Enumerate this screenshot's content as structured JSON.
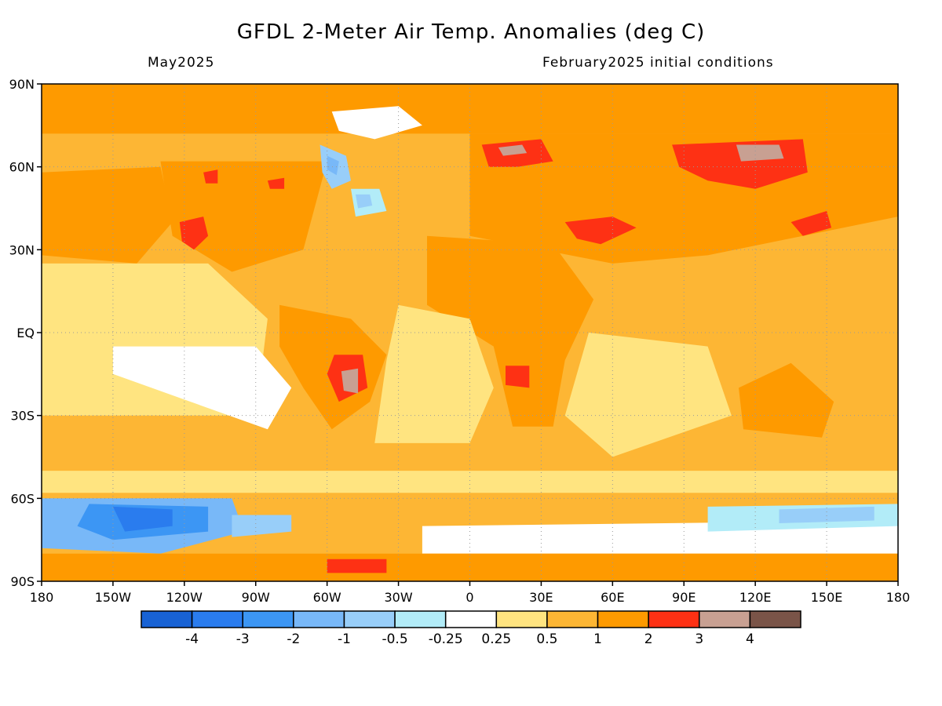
{
  "title": "GFDL 2-Meter Air Temp. Anomalies (deg C)",
  "subtitle_left": "May2025",
  "subtitle_right": "February2025 initial conditions",
  "map": {
    "projection": "equirectangular",
    "lon_range": [
      -180,
      180
    ],
    "lat_range": [
      -90,
      90
    ],
    "lat_ticks": [
      {
        "value": 90,
        "label": "90N"
      },
      {
        "value": 60,
        "label": "60N"
      },
      {
        "value": 30,
        "label": "30N"
      },
      {
        "value": 0,
        "label": "EQ"
      },
      {
        "value": -30,
        "label": "30S"
      },
      {
        "value": -60,
        "label": "60S"
      },
      {
        "value": -90,
        "label": "90S"
      }
    ],
    "lon_ticks": [
      {
        "value": -180,
        "label": "180"
      },
      {
        "value": -150,
        "label": "150W"
      },
      {
        "value": -120,
        "label": "120W"
      },
      {
        "value": -90,
        "label": "90W"
      },
      {
        "value": -60,
        "label": "60W"
      },
      {
        "value": -30,
        "label": "30W"
      },
      {
        "value": 0,
        "label": "0"
      },
      {
        "value": 30,
        "label": "30E"
      },
      {
        "value": 60,
        "label": "60E"
      },
      {
        "value": 90,
        "label": "90E"
      },
      {
        "value": 120,
        "label": "120E"
      },
      {
        "value": 150,
        "label": "150E"
      },
      {
        "value": 180,
        "label": "180"
      }
    ],
    "gridlines": "dotted",
    "background_color": "#fdb634",
    "regions": [
      {
        "name": "arctic-warm",
        "category": "1-2",
        "points": [
          [
            -180,
            90
          ],
          [
            180,
            90
          ],
          [
            180,
            72
          ],
          [
            -180,
            72
          ]
        ]
      },
      {
        "name": "north-pacific-warm",
        "category": "1-2",
        "points": [
          [
            -180,
            58
          ],
          [
            -130,
            60
          ],
          [
            -125,
            40
          ],
          [
            -140,
            25
          ],
          [
            -180,
            28
          ]
        ]
      },
      {
        "name": "north-america-warm",
        "category": "1-2",
        "points": [
          [
            -130,
            62
          ],
          [
            -60,
            62
          ],
          [
            -70,
            30
          ],
          [
            -100,
            22
          ],
          [
            -125,
            35
          ]
        ]
      },
      {
        "name": "western-us-hot",
        "category": "2-3",
        "points": [
          [
            -122,
            40
          ],
          [
            -112,
            42
          ],
          [
            -110,
            35
          ],
          [
            -116,
            30
          ],
          [
            -121,
            33
          ]
        ]
      },
      {
        "name": "canada-hot-1",
        "category": "2-3",
        "points": [
          [
            -112,
            58
          ],
          [
            -106,
            59
          ],
          [
            -106,
            54
          ],
          [
            -111,
            54
          ]
        ]
      },
      {
        "name": "canada-hot-2",
        "category": "2-3",
        "points": [
          [
            -85,
            55
          ],
          [
            -78,
            56
          ],
          [
            -78,
            52
          ],
          [
            -84,
            52
          ]
        ]
      },
      {
        "name": "labrador-sea-cool",
        "category": "-1 to -0.5",
        "points": [
          [
            -63,
            68
          ],
          [
            -52,
            64
          ],
          [
            -50,
            55
          ],
          [
            -58,
            52
          ],
          [
            -62,
            58
          ]
        ]
      },
      {
        "name": "labrador-sea-colder",
        "category": "-2 to -1",
        "points": [
          [
            -60,
            64
          ],
          [
            -55,
            62
          ],
          [
            -56,
            57
          ],
          [
            -60,
            59
          ]
        ]
      },
      {
        "name": "newfoundland-cool",
        "category": "-0.5 to -0.25",
        "points": [
          [
            -50,
            52
          ],
          [
            -38,
            52
          ],
          [
            -35,
            44
          ],
          [
            -48,
            42
          ]
        ]
      },
      {
        "name": "north-atlantic-cool-center",
        "category": "-1 to -0.5",
        "points": [
          [
            -48,
            50
          ],
          [
            -42,
            50
          ],
          [
            -41,
            46
          ],
          [
            -47,
            45
          ]
        ]
      },
      {
        "name": "greenland-neutral",
        "category": "-0.25 to 0.25",
        "points": [
          [
            -58,
            80
          ],
          [
            -30,
            82
          ],
          [
            -20,
            75
          ],
          [
            -40,
            70
          ],
          [
            -55,
            73
          ]
        ]
      },
      {
        "name": "eurasia-warm",
        "category": "1-2",
        "points": [
          [
            0,
            72
          ],
          [
            180,
            72
          ],
          [
            180,
            42
          ],
          [
            140,
            35
          ],
          [
            100,
            28
          ],
          [
            60,
            25
          ],
          [
            30,
            30
          ],
          [
            0,
            35
          ]
        ]
      },
      {
        "name": "scandinavia-hot",
        "category": "2-3",
        "points": [
          [
            5,
            68
          ],
          [
            30,
            70
          ],
          [
            35,
            62
          ],
          [
            20,
            60
          ],
          [
            8,
            60
          ]
        ]
      },
      {
        "name": "scandinavia-very-hot",
        "category": "3-4",
        "points": [
          [
            12,
            67
          ],
          [
            22,
            68
          ],
          [
            24,
            65
          ],
          [
            14,
            64
          ]
        ]
      },
      {
        "name": "siberia-hot",
        "category": "2-3",
        "points": [
          [
            85,
            68
          ],
          [
            140,
            70
          ],
          [
            142,
            58
          ],
          [
            120,
            52
          ],
          [
            100,
            55
          ],
          [
            88,
            60
          ]
        ]
      },
      {
        "name": "siberia-very-hot",
        "category": "3-4",
        "points": [
          [
            112,
            68
          ],
          [
            130,
            68
          ],
          [
            132,
            63
          ],
          [
            114,
            62
          ]
        ]
      },
      {
        "name": "middle-east-hot",
        "category": "2-3",
        "points": [
          [
            40,
            40
          ],
          [
            60,
            42
          ],
          [
            70,
            38
          ],
          [
            55,
            32
          ],
          [
            45,
            34
          ]
        ]
      },
      {
        "name": "japan-hot",
        "category": "2-3",
        "points": [
          [
            135,
            40
          ],
          [
            150,
            44
          ],
          [
            152,
            38
          ],
          [
            140,
            35
          ]
        ]
      },
      {
        "name": "tropical-pacific-mild",
        "category": "0.25-0.5",
        "points": [
          [
            -180,
            25
          ],
          [
            -110,
            25
          ],
          [
            -85,
            5
          ],
          [
            -90,
            -30
          ],
          [
            -180,
            -30
          ]
        ]
      },
      {
        "name": "east-pacific-neutral",
        "category": "-0.25 to 0.25",
        "points": [
          [
            -150,
            -5
          ],
          [
            -90,
            -5
          ],
          [
            -75,
            -20
          ],
          [
            -85,
            -35
          ],
          [
            -150,
            -15
          ]
        ]
      },
      {
        "name": "south-america-warm",
        "category": "1-2",
        "points": [
          [
            -80,
            10
          ],
          [
            -50,
            5
          ],
          [
            -35,
            -8
          ],
          [
            -42,
            -25
          ],
          [
            -58,
            -35
          ],
          [
            -70,
            -20
          ],
          [
            -80,
            -5
          ]
        ]
      },
      {
        "name": "brazil-hot",
        "category": "2-3",
        "points": [
          [
            -57,
            -8
          ],
          [
            -45,
            -8
          ],
          [
            -43,
            -20
          ],
          [
            -55,
            -25
          ],
          [
            -60,
            -15
          ]
        ]
      },
      {
        "name": "brazil-very-hot",
        "category": "3-4",
        "points": [
          [
            -54,
            -14
          ],
          [
            -47,
            -13
          ],
          [
            -47,
            -22
          ],
          [
            -53,
            -21
          ]
        ]
      },
      {
        "name": "africa-warm",
        "category": "1-2",
        "points": [
          [
            -18,
            35
          ],
          [
            35,
            32
          ],
          [
            52,
            12
          ],
          [
            40,
            -10
          ],
          [
            35,
            -34
          ],
          [
            18,
            -34
          ],
          [
            10,
            -5
          ],
          [
            -18,
            10
          ]
        ]
      },
      {
        "name": "africa-south-hot",
        "category": "2-3",
        "points": [
          [
            15,
            -12
          ],
          [
            25,
            -12
          ],
          [
            25,
            -20
          ],
          [
            15,
            -19
          ]
        ]
      },
      {
        "name": "atlantic-tropical-mild",
        "category": "0.25-0.5",
        "points": [
          [
            -30,
            10
          ],
          [
            0,
            5
          ],
          [
            10,
            -20
          ],
          [
            0,
            -40
          ],
          [
            -40,
            -40
          ],
          [
            -35,
            -10
          ]
        ]
      },
      {
        "name": "indian-ocean-mild",
        "category": "0.25-0.5",
        "points": [
          [
            50,
            0
          ],
          [
            100,
            -5
          ],
          [
            110,
            -30
          ],
          [
            60,
            -45
          ],
          [
            40,
            -30
          ]
        ]
      },
      {
        "name": "australia-warm",
        "category": "1-2",
        "points": [
          [
            113,
            -20
          ],
          [
            135,
            -11
          ],
          [
            153,
            -25
          ],
          [
            148,
            -38
          ],
          [
            115,
            -35
          ]
        ]
      },
      {
        "name": "southern-ocean-mild",
        "category": "0.25-0.5",
        "points": [
          [
            -180,
            -50
          ],
          [
            180,
            -50
          ],
          [
            180,
            -58
          ],
          [
            -180,
            -58
          ]
        ]
      },
      {
        "name": "ross-sea-cold",
        "category": "-2 to -1",
        "points": [
          [
            -180,
            -60
          ],
          [
            -100,
            -60
          ],
          [
            -95,
            -72
          ],
          [
            -130,
            -80
          ],
          [
            -180,
            -78
          ]
        ]
      },
      {
        "name": "ross-sea-colder",
        "category": "-3 to -2",
        "points": [
          [
            -160,
            -62
          ],
          [
            -110,
            -63
          ],
          [
            -110,
            -72
          ],
          [
            -150,
            -75
          ],
          [
            -165,
            -70
          ]
        ]
      },
      {
        "name": "ross-sea-coldest",
        "category": "-4 to -3",
        "points": [
          [
            -150,
            -63
          ],
          [
            -125,
            -64
          ],
          [
            -125,
            -70
          ],
          [
            -145,
            -72
          ]
        ]
      },
      {
        "name": "amundsen-cool",
        "category": "-1 to -0.5",
        "points": [
          [
            -100,
            -66
          ],
          [
            -75,
            -66
          ],
          [
            -75,
            -72
          ],
          [
            -100,
            -74
          ]
        ]
      },
      {
        "name": "antarctic-coast-neutral",
        "category": "-0.25 to 0.25",
        "points": [
          [
            -20,
            -70
          ],
          [
            180,
            -68
          ],
          [
            180,
            -80
          ],
          [
            -20,
            -80
          ]
        ]
      },
      {
        "name": "east-antarctica-cool",
        "category": "-0.5 to -0.25",
        "points": [
          [
            100,
            -63
          ],
          [
            180,
            -62
          ],
          [
            180,
            -70
          ],
          [
            100,
            -72
          ]
        ]
      },
      {
        "name": "east-antarctica-colder",
        "category": "-1 to -0.5",
        "points": [
          [
            130,
            -64
          ],
          [
            170,
            -63
          ],
          [
            170,
            -68
          ],
          [
            130,
            -69
          ]
        ]
      },
      {
        "name": "antarctica-interior-warm",
        "category": "1-2",
        "points": [
          [
            -180,
            -80
          ],
          [
            180,
            -80
          ],
          [
            180,
            -90
          ],
          [
            -180,
            -90
          ]
        ]
      },
      {
        "name": "weddell-hot",
        "category": "2-3",
        "points": [
          [
            -60,
            -82
          ],
          [
            -35,
            -82
          ],
          [
            -35,
            -87
          ],
          [
            -60,
            -87
          ]
        ]
      }
    ]
  },
  "legend": {
    "colors": [
      "#1862d4",
      "#2a7cee",
      "#3c96f4",
      "#78b8f8",
      "#98cef9",
      "#b2ecf8",
      "#ffffff",
      "#ffe480",
      "#fdb634",
      "#fe9a00",
      "#fe3114",
      "#c8a092",
      "#7a5448"
    ],
    "labels": [
      "-4",
      "-3",
      "-2",
      "-1",
      "-0.5",
      "-0.25",
      "0.25",
      "0.5",
      "1",
      "2",
      "3",
      "4"
    ],
    "categories": [
      "< -4",
      "-4 to -3",
      "-3 to -2",
      "-2 to -1",
      "-1 to -0.5",
      "-0.5 to -0.25",
      "-0.25 to 0.25",
      "0.25-0.5",
      "0.5-1",
      "1-2",
      "2-3",
      "3-4",
      "> 4"
    ]
  }
}
